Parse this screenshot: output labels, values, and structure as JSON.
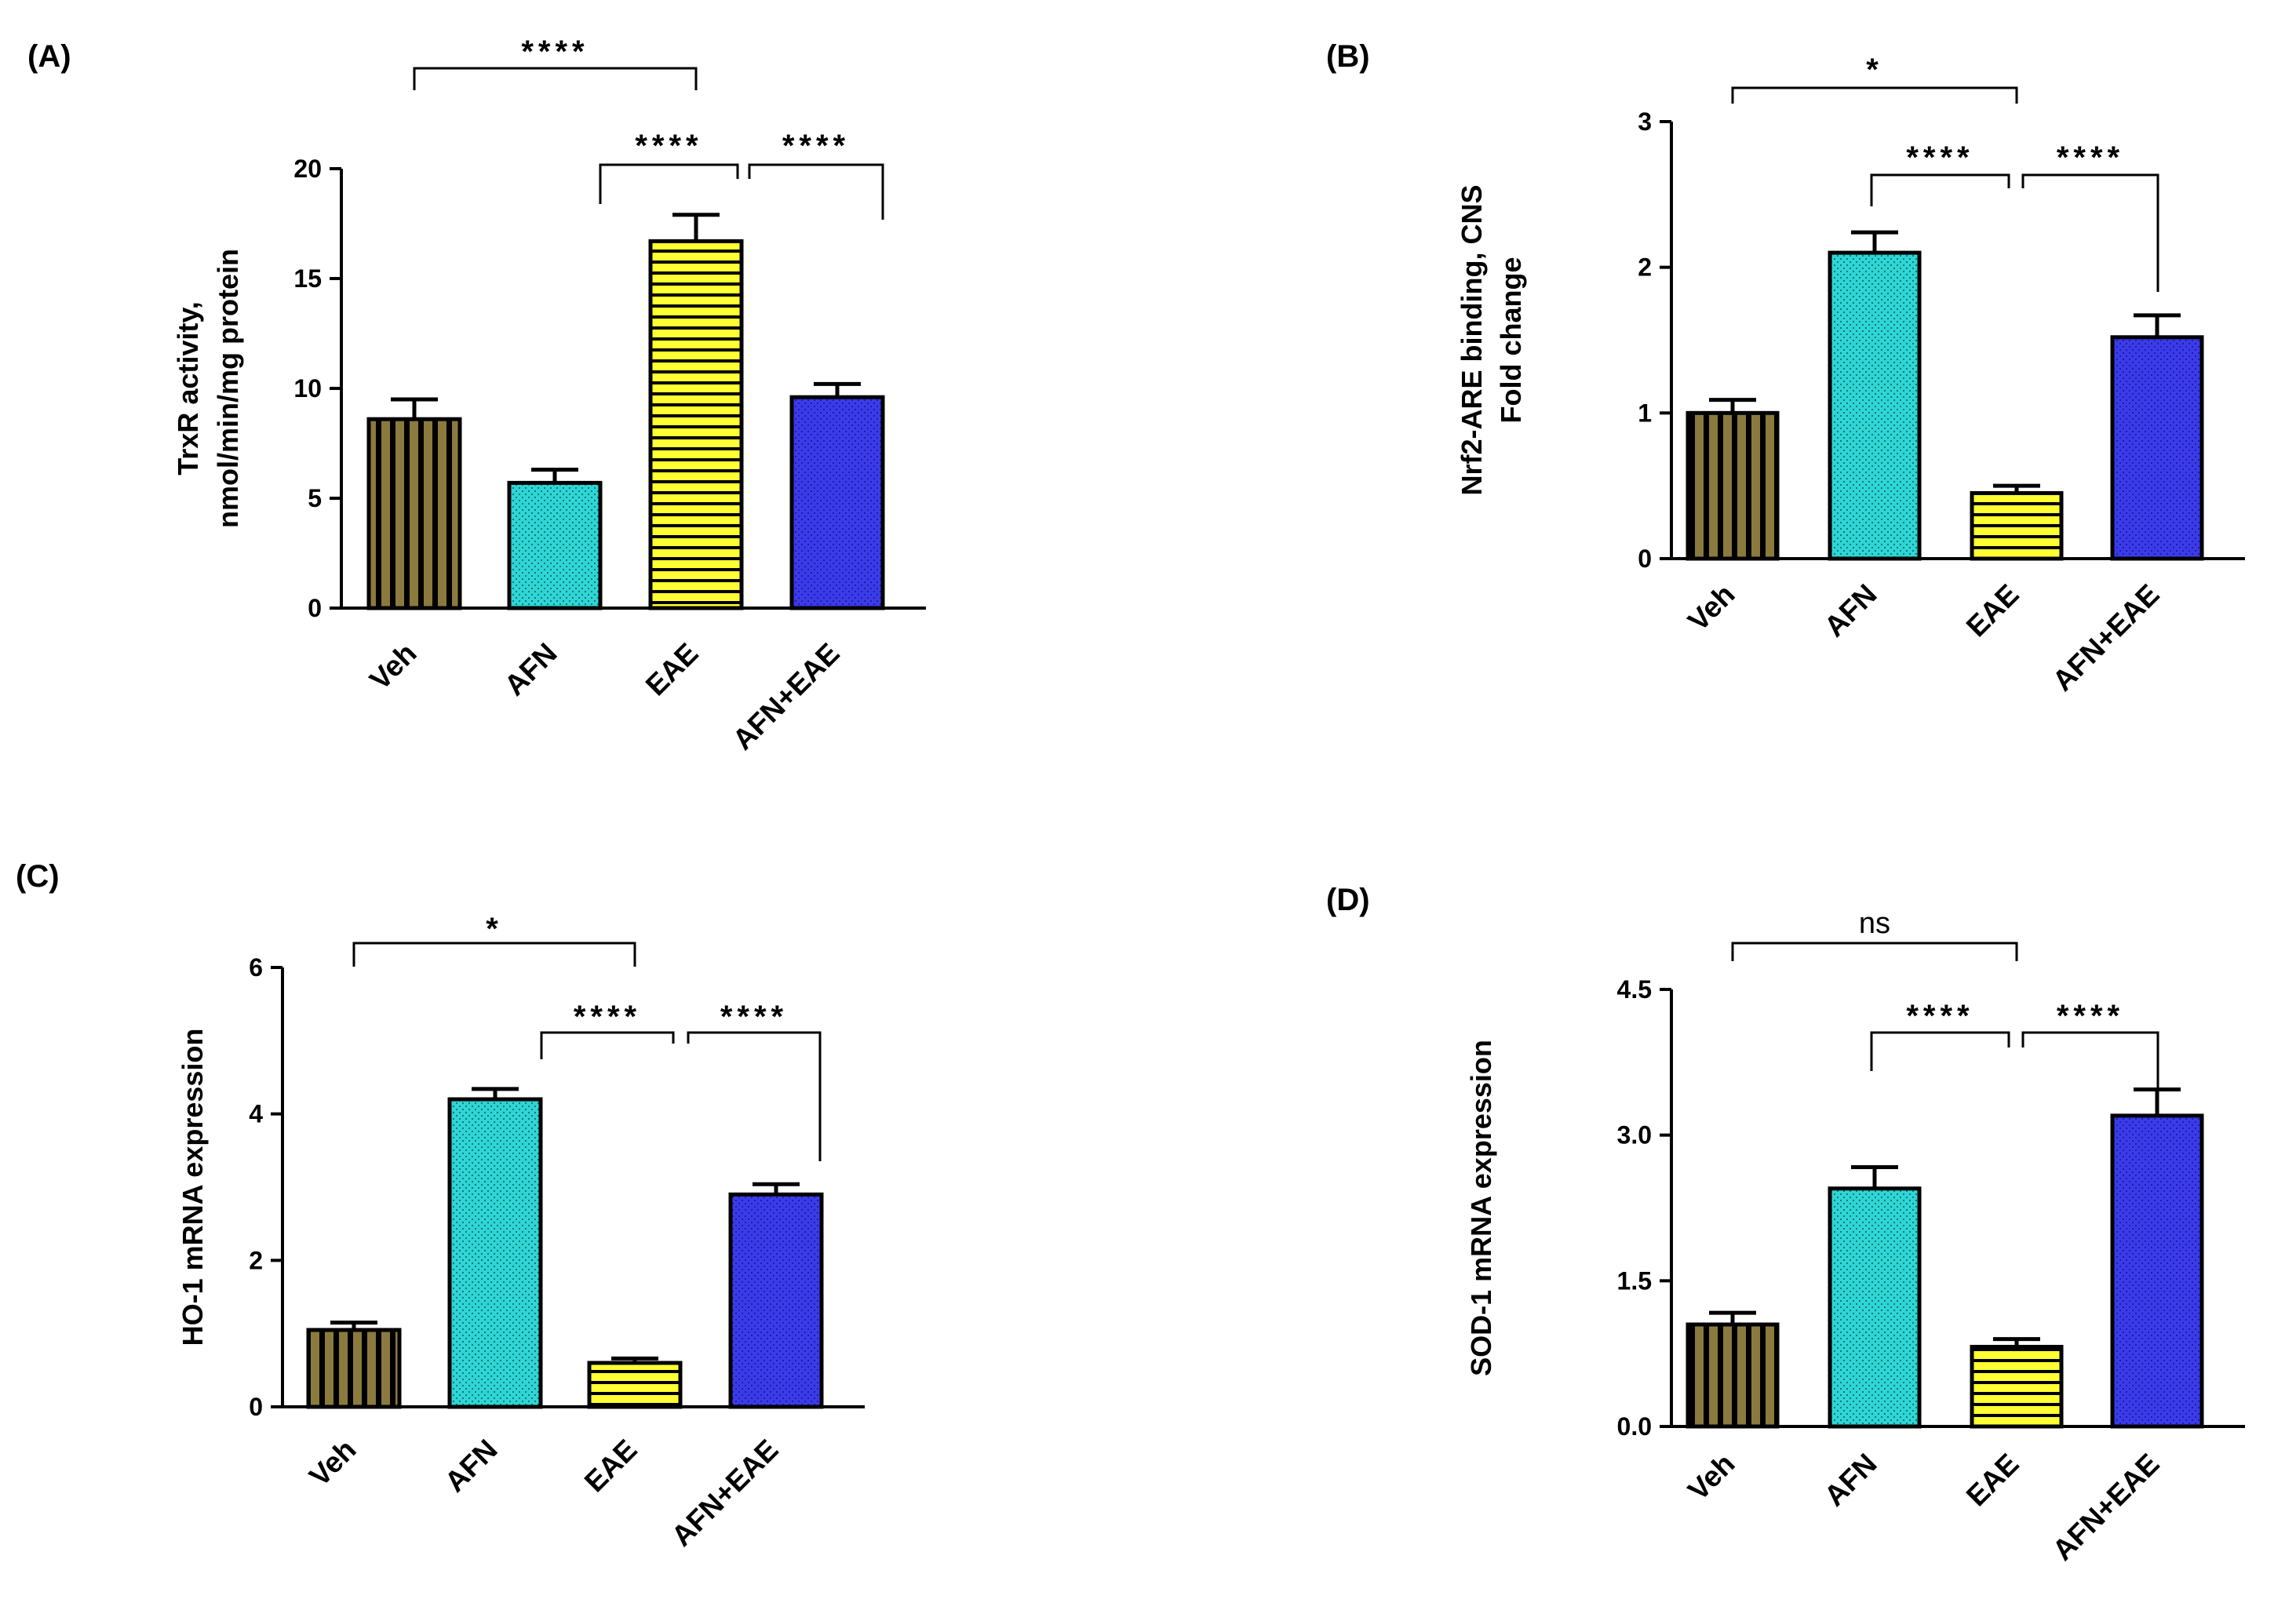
{
  "colors": {
    "Veh": "#8b7a3e",
    "AFN": "#2fd6d6",
    "EAE": "#ffff33",
    "AFN+EAE": "#3b3bea"
  },
  "chart_data": [
    {
      "panel": "(A)",
      "type": "bar",
      "ylabel": [
        "TrxR activity,",
        "nmol/min/mg protein"
      ],
      "categories": [
        "Veh",
        "AFN",
        "EAE",
        "AFN+EAE"
      ],
      "values": [
        8.6,
        5.7,
        16.7,
        9.6
      ],
      "errors": [
        0.9,
        0.6,
        1.2,
        0.6
      ],
      "ylim": [
        0,
        20
      ],
      "yticks": [
        0,
        5,
        10,
        15,
        20
      ],
      "ytick_labels": [
        "0",
        "5",
        "10",
        "15",
        "20"
      ],
      "comparisons": [
        {
          "from": "Veh",
          "to": "EAE",
          "label": "****"
        },
        {
          "from": "AFN",
          "to": "EAE",
          "label": "****"
        },
        {
          "from": "EAE",
          "to": "AFN+EAE",
          "label": "****"
        }
      ]
    },
    {
      "panel": "(B)",
      "type": "bar",
      "ylabel": [
        "Nrf2-ARE binding, CNS",
        "Fold change"
      ],
      "categories": [
        "Veh",
        "AFN",
        "EAE",
        "AFN+EAE"
      ],
      "values": [
        1.0,
        2.1,
        0.45,
        1.52
      ],
      "errors": [
        0.09,
        0.14,
        0.05,
        0.15
      ],
      "ylim": [
        0,
        3
      ],
      "yticks": [
        0,
        1,
        2,
        3
      ],
      "ytick_labels": [
        "0",
        "1",
        "2",
        "3"
      ],
      "comparisons": [
        {
          "from": "Veh",
          "to": "EAE",
          "label": "*"
        },
        {
          "from": "AFN",
          "to": "EAE",
          "label": "****"
        },
        {
          "from": "EAE",
          "to": "AFN+EAE",
          "label": "****"
        }
      ]
    },
    {
      "panel": "(C)",
      "type": "bar",
      "ylabel": [
        "HO-1 mRNA expression"
      ],
      "categories": [
        "Veh",
        "AFN",
        "EAE",
        "AFN+EAE"
      ],
      "values": [
        1.05,
        4.2,
        0.6,
        2.9
      ],
      "errors": [
        0.1,
        0.14,
        0.06,
        0.14
      ],
      "ylim": [
        0,
        6
      ],
      "yticks": [
        0,
        2,
        4,
        6
      ],
      "ytick_labels": [
        "0",
        "2",
        "4",
        "6"
      ],
      "comparisons": [
        {
          "from": "Veh",
          "to": "EAE",
          "label": "*"
        },
        {
          "from": "AFN",
          "to": "EAE",
          "label": "****"
        },
        {
          "from": "EAE",
          "to": "AFN+EAE",
          "label": "****"
        }
      ]
    },
    {
      "panel": "(D)",
      "type": "bar",
      "ylabel": [
        "SOD-1 mRNA expression"
      ],
      "categories": [
        "Veh",
        "AFN",
        "EAE",
        "AFN+EAE"
      ],
      "values": [
        1.05,
        2.45,
        0.82,
        3.2
      ],
      "errors": [
        0.12,
        0.22,
        0.08,
        0.27
      ],
      "ylim": [
        0,
        4.5
      ],
      "yticks": [
        0,
        1.5,
        3,
        4.5
      ],
      "ytick_labels": [
        "0.0",
        "1.5",
        "3.0",
        "4.5"
      ],
      "comparisons": [
        {
          "from": "Veh",
          "to": "EAE",
          "label": "ns"
        },
        {
          "from": "AFN",
          "to": "EAE",
          "label": "****"
        },
        {
          "from": "EAE",
          "to": "AFN+EAE",
          "label": "****"
        }
      ]
    }
  ]
}
